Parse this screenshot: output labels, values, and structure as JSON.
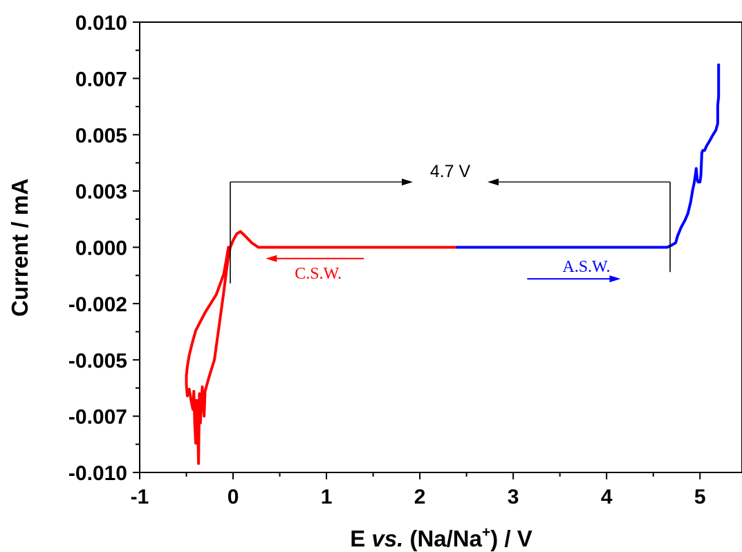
{
  "chart_data": {
    "type": "line",
    "title": "",
    "xlabel": {
      "prefix": "E ",
      "italic": "vs.",
      "mid": " (Na/Na",
      "sup": "+",
      "suffix": ") / V"
    },
    "ylabel": "Current / mA",
    "xlim": [
      -1,
      5.45
    ],
    "ylim": [
      -0.01,
      0.01
    ],
    "x_ticks": [
      -1,
      0,
      1,
      2,
      3,
      4,
      5
    ],
    "x_tick_labels": [
      "-1",
      "0",
      "1",
      "2",
      "3",
      "4",
      "5"
    ],
    "y_ticks": [
      0.01,
      0.0075,
      0.005,
      0.0025,
      0.0,
      -0.0025,
      -0.005,
      -0.0075,
      -0.01
    ],
    "y_tick_labels": [
      "0.010",
      "0.007",
      "0.005",
      "0.003",
      "0.000",
      "-0.002",
      "-0.005",
      "-0.007",
      "-0.010"
    ],
    "grid": false,
    "series": [
      {
        "color": "#ff0000",
        "x": [
          2.4,
          1.6,
          1.0,
          0.5,
          0.27,
          0.2,
          0.13,
          0.08,
          0.04,
          0.0,
          -0.03,
          -0.05,
          -0.07,
          -0.1,
          -0.15,
          -0.2,
          -0.26,
          -0.3,
          -0.31,
          -0.33,
          -0.35,
          -0.36,
          -0.37,
          -0.38,
          -0.39,
          -0.4,
          -0.41,
          -0.42,
          -0.43,
          -0.45,
          -0.47,
          -0.49,
          -0.5,
          -0.5,
          -0.49,
          -0.47,
          -0.44,
          -0.4,
          -0.3,
          -0.18,
          -0.1,
          -0.07,
          -0.05
        ],
        "y": [
          0.0,
          0.0,
          0.0,
          0.0,
          0.0,
          0.0002,
          0.0005,
          0.0007,
          0.0006,
          0.0003,
          0.0,
          -0.0004,
          -0.001,
          -0.002,
          -0.0035,
          -0.005,
          -0.0058,
          -0.0064,
          -0.0075,
          -0.0062,
          -0.0078,
          -0.0065,
          -0.0096,
          -0.0075,
          -0.0068,
          -0.0087,
          -0.0079,
          -0.0064,
          -0.0072,
          -0.0068,
          -0.0063,
          -0.0066,
          -0.0061,
          -0.0057,
          -0.0053,
          -0.0048,
          -0.0043,
          -0.0037,
          -0.0029,
          -0.0021,
          -0.0012,
          -0.0005,
          0.0
        ]
      },
      {
        "color": "#0000ff",
        "x": [
          2.4,
          3.0,
          3.5,
          4.0,
          4.5,
          4.65,
          4.7,
          4.74,
          4.76,
          4.8,
          4.84,
          4.87,
          4.9,
          4.92,
          4.94,
          4.95,
          4.96,
          4.97,
          4.98,
          5.0,
          5.01,
          5.02,
          5.03,
          5.05,
          5.07,
          5.1,
          5.14,
          5.17,
          5.19,
          5.19,
          5.2,
          5.2
        ],
        "y": [
          0.0,
          0.0,
          0.0,
          0.0,
          0.0,
          0.0,
          0.0001,
          0.0002,
          0.0005,
          0.0009,
          0.0012,
          0.0015,
          0.002,
          0.0025,
          0.0029,
          0.0032,
          0.0035,
          0.003,
          0.0029,
          0.0029,
          0.0032,
          0.0042,
          0.0043,
          0.0043,
          0.0045,
          0.0047,
          0.005,
          0.0052,
          0.0055,
          0.0063,
          0.0067,
          0.0081
        ]
      }
    ],
    "annotations": {
      "window_label": "4.7 V",
      "window_x": [
        -0.03,
        4.68
      ],
      "window_y": 0.0029,
      "csw_label": "C.S.W.",
      "csw_color": "#ff0000",
      "asw_label": "A.S.W.",
      "asw_color": "#0000ff"
    }
  }
}
